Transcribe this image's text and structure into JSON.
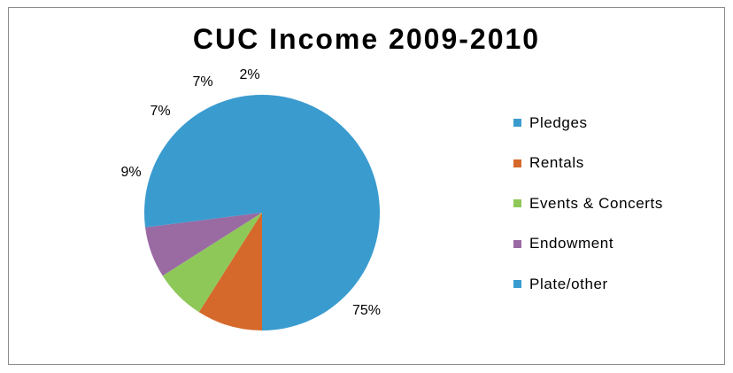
{
  "chart_data": {
    "type": "pie",
    "title": "CUC Income 2009-2010",
    "categories": [
      "Pledges",
      "Rentals",
      "Events & Concerts",
      "Endowment",
      "Plate/other"
    ],
    "values": [
      75,
      9,
      7,
      7,
      2
    ],
    "labels": [
      "75%",
      "9%",
      "7%",
      "7%",
      "2%"
    ],
    "colors": [
      "#3a9bcf",
      "#d5692b",
      "#8ec859",
      "#9a6aa3",
      "#3a9bcf"
    ],
    "legend_position": "right",
    "grid": false
  }
}
